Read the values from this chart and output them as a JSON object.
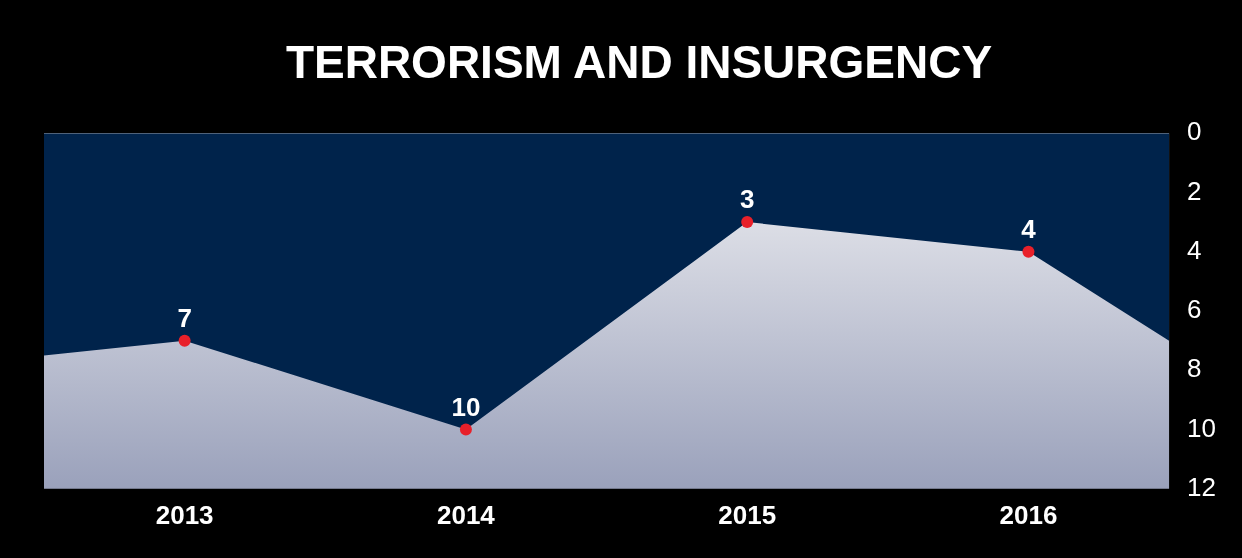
{
  "chart_data": {
    "type": "area",
    "title": "TERRORISM AND INSURGENCY",
    "x": [
      2012.5,
      2013,
      2014,
      2015,
      2016,
      2016.5
    ],
    "series": [
      {
        "color": "#00234b",
        "values": [
          7.5,
          7,
          10,
          3,
          4,
          7
        ],
        "value_labels": [
          null,
          "7",
          "10",
          "3",
          "4",
          null
        ]
      }
    ],
    "xlim": [
      2012.5,
      2016.5
    ],
    "xticks": [
      2013,
      2014,
      2015,
      2016
    ],
    "ylim": [
      12,
      0
    ],
    "yticks": [
      0,
      2,
      4,
      6,
      8,
      10,
      12
    ],
    "marker": "circle",
    "grid": false,
    "legend": false
  }
}
